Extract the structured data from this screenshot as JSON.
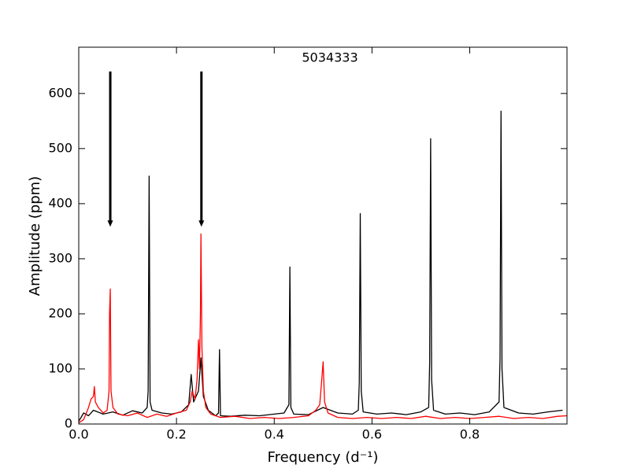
{
  "chart_data": {
    "type": "line",
    "title": "5034333",
    "x_label": "Frequency  (d⁻¹)",
    "y_label": "Amplitude  (ppm)",
    "xlim": [
      0,
      0.999
    ],
    "ylim": [
      0,
      684
    ],
    "xticks": [
      {
        "value": 0,
        "label": "0.0"
      },
      {
        "value": 0.2,
        "label": "0.2"
      },
      {
        "value": 0.4,
        "label": "0.4"
      },
      {
        "value": 0.6,
        "label": "0.6"
      },
      {
        "value": 0.8,
        "label": "0.8"
      }
    ],
    "yticks": [
      0,
      100,
      200,
      300,
      400,
      500,
      600
    ],
    "grid": false,
    "series": [
      {
        "color": "#000000",
        "x": [
          0,
          0.01,
          0.02,
          0.03,
          0.05,
          0.07,
          0.09,
          0.11,
          0.13,
          0.14,
          0.142,
          0.144,
          0.146,
          0.15,
          0.17,
          0.19,
          0.21,
          0.225,
          0.23,
          0.235,
          0.245,
          0.25,
          0.255,
          0.265,
          0.28,
          0.286,
          0.288,
          0.29,
          0.31,
          0.34,
          0.37,
          0.4,
          0.42,
          0.43,
          0.432,
          0.434,
          0.44,
          0.47,
          0.5,
          0.53,
          0.56,
          0.572,
          0.574,
          0.576,
          0.578,
          0.582,
          0.61,
          0.64,
          0.67,
          0.7,
          0.716,
          0.718,
          0.72,
          0.722,
          0.726,
          0.75,
          0.78,
          0.81,
          0.84,
          0.86,
          0.862,
          0.864,
          0.866,
          0.87,
          0.9,
          0.93,
          0.96,
          0.99
        ],
        "values": [
          5,
          20,
          15,
          25,
          18,
          22,
          16,
          24,
          20,
          30,
          60,
          450,
          40,
          25,
          20,
          18,
          22,
          35,
          90,
          40,
          60,
          120,
          50,
          25,
          15,
          20,
          135,
          15,
          14,
          16,
          15,
          18,
          20,
          35,
          285,
          30,
          18,
          17,
          30,
          20,
          18,
          25,
          75,
          382,
          60,
          22,
          18,
          20,
          17,
          22,
          30,
          110,
          518,
          80,
          25,
          18,
          20,
          17,
          22,
          40,
          120,
          568,
          100,
          30,
          20,
          18,
          22,
          25
        ]
      },
      {
        "color": "#ff0000",
        "x": [
          0,
          0.01,
          0.02,
          0.025,
          0.03,
          0.032,
          0.034,
          0.04,
          0.05,
          0.058,
          0.062,
          0.063,
          0.0645,
          0.066,
          0.07,
          0.08,
          0.1,
          0.12,
          0.14,
          0.16,
          0.18,
          0.2,
          0.22,
          0.228,
          0.232,
          0.238,
          0.242,
          0.245,
          0.247,
          0.249,
          0.25,
          0.252,
          0.255,
          0.26,
          0.27,
          0.29,
          0.32,
          0.35,
          0.38,
          0.41,
          0.44,
          0.47,
          0.485,
          0.493,
          0.497,
          0.5,
          0.503,
          0.51,
          0.53,
          0.56,
          0.59,
          0.62,
          0.65,
          0.68,
          0.71,
          0.74,
          0.77,
          0.8,
          0.83,
          0.86,
          0.89,
          0.92,
          0.95,
          0.98,
          0.999
        ],
        "values": [
          2,
          8,
          30,
          45,
          50,
          68,
          40,
          30,
          20,
          25,
          60,
          200,
          245,
          60,
          30,
          18,
          15,
          20,
          12,
          18,
          14,
          20,
          25,
          40,
          60,
          45,
          80,
          153,
          100,
          200,
          345,
          140,
          60,
          30,
          18,
          12,
          14,
          10,
          12,
          10,
          12,
          15,
          25,
          35,
          78,
          113,
          40,
          20,
          12,
          10,
          12,
          10,
          12,
          10,
          14,
          10,
          12,
          10,
          12,
          14,
          10,
          12,
          10,
          14,
          15
        ]
      }
    ],
    "arrows": [
      {
        "x": 0.0645,
        "y_start": 640,
        "y_end": 358
      },
      {
        "x": 0.251,
        "y_start": 640,
        "y_end": 358
      }
    ]
  }
}
